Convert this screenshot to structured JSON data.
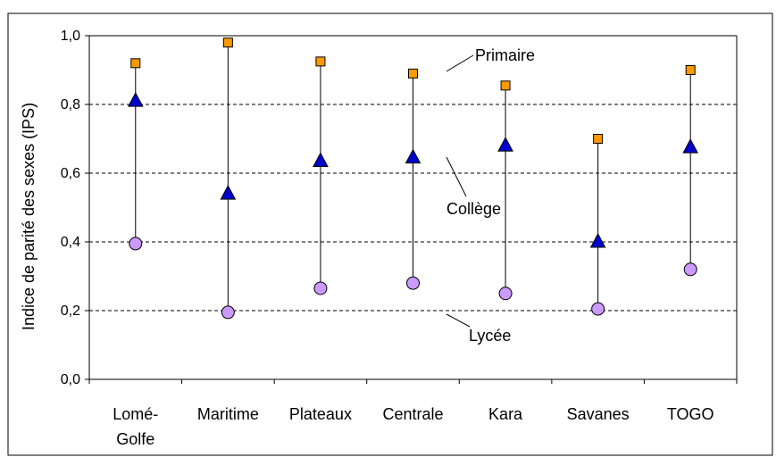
{
  "chart_data": {
    "type": "scatter",
    "title": "",
    "xlabel": "",
    "ylabel": "Indice de parité des sexes (IPS)",
    "ylim": [
      0,
      1
    ],
    "yticks": [
      "0,0",
      "0,2",
      "0,4",
      "0,6",
      "0,8",
      "1,0"
    ],
    "ytick_values": [
      0,
      0.2,
      0.4,
      0.6,
      0.8,
      1.0
    ],
    "grid": true,
    "categories": [
      [
        "Lomé-",
        "Golfe"
      ],
      [
        "Maritime"
      ],
      [
        "Plateaux"
      ],
      [
        "Centrale"
      ],
      [
        "Kara"
      ],
      [
        "Savanes"
      ],
      [
        "TOGO"
      ]
    ],
    "series": [
      {
        "name": "Primaire",
        "marker": "square",
        "color": "#FF9900",
        "values": [
          0.92,
          0.98,
          0.925,
          0.89,
          0.855,
          0.7,
          0.9
        ]
      },
      {
        "name": "Collège",
        "marker": "triangle",
        "color": "#0000CC",
        "values": [
          0.81,
          0.54,
          0.635,
          0.645,
          0.68,
          0.4,
          0.675
        ]
      },
      {
        "name": "Lycée",
        "marker": "circle",
        "color": "#CC99FF",
        "values": [
          0.395,
          0.195,
          0.265,
          0.28,
          0.25,
          0.205,
          0.32
        ]
      }
    ],
    "annotations": [
      {
        "text": "Primaire",
        "series": "Primaire",
        "category_index": 3
      },
      {
        "text": "Collège",
        "series": "Collège",
        "category_index": 3
      },
      {
        "text": "Lycée",
        "series": "Lycée",
        "category_index": 3
      }
    ]
  }
}
